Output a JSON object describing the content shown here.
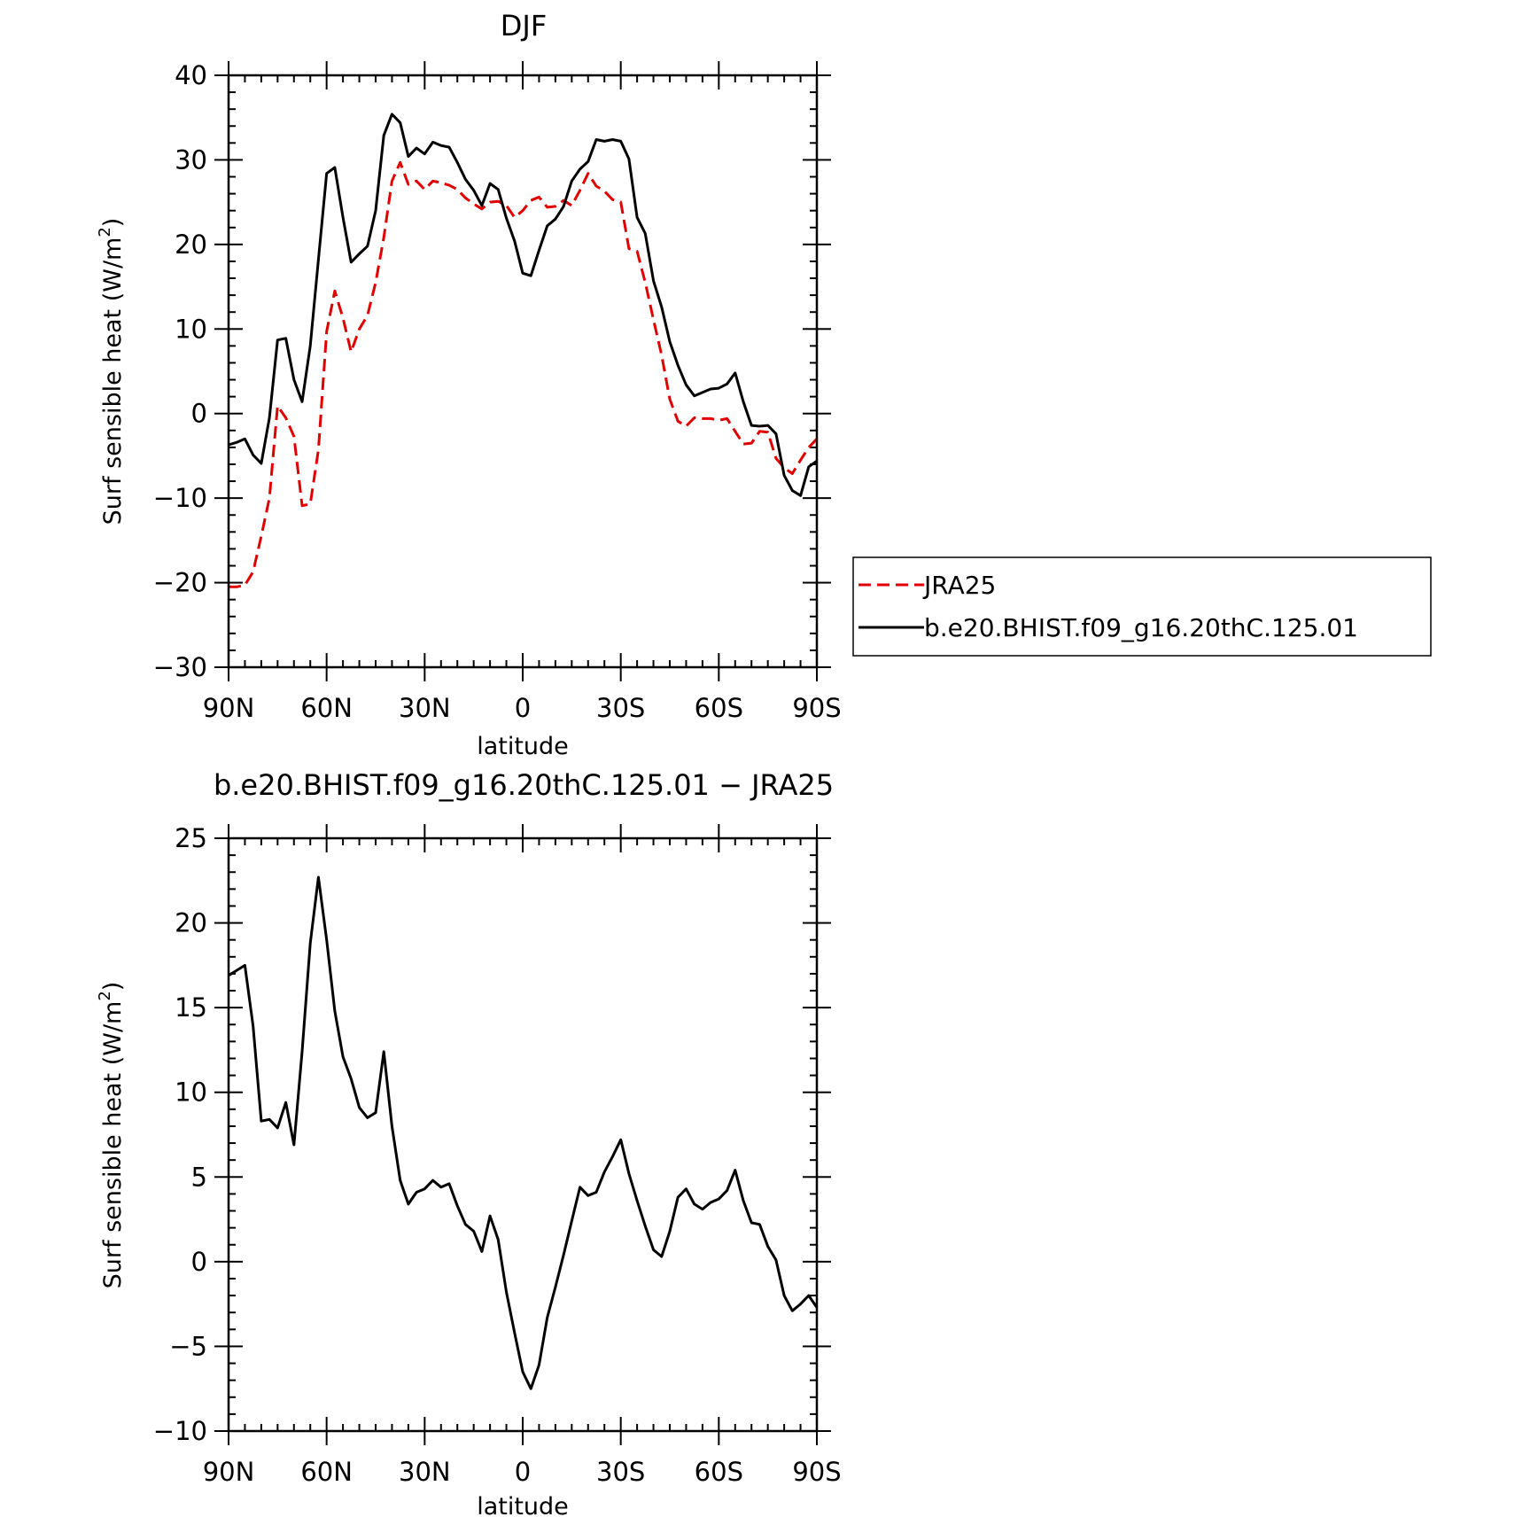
{
  "chart_data": [
    {
      "type": "line",
      "title": "DJF",
      "xlabel": "latitude",
      "ylabel": "Surf sensible heat (W/m",
      "ylabel_sup": "2",
      "ylabel_close": ")",
      "x_direction": "90N to 90S",
      "xlim": [
        90,
        -90
      ],
      "ylim": [
        -30,
        40
      ],
      "x_ticks": [
        90,
        60,
        30,
        0,
        -30,
        -60,
        -90
      ],
      "x_tick_labels": [
        "90N",
        "60N",
        "30N",
        "0",
        "30S",
        "60S",
        "90S"
      ],
      "y_ticks": [
        -30,
        -20,
        -10,
        0,
        10,
        20,
        30,
        40
      ],
      "y_tick_labels": [
        "−30",
        "−20",
        "−10",
        "0",
        "10",
        "20",
        "30",
        "40"
      ],
      "grid": false,
      "legend_position": "right, outside plot",
      "series": [
        {
          "name": "JRA25",
          "color": "#e00000",
          "dash": "dashed",
          "x": [
            90,
            87.5,
            85,
            82.5,
            80,
            77.5,
            75,
            72.5,
            70,
            67.5,
            65,
            62.5,
            60,
            57.5,
            55,
            52.5,
            50,
            47.5,
            45,
            42.5,
            40,
            37.5,
            35,
            32.5,
            30,
            27.5,
            25,
            22.5,
            20,
            17.5,
            15,
            12.5,
            10,
            7.5,
            5,
            2.5,
            0,
            -2.5,
            -5,
            -7.5,
            -10,
            -12.5,
            -15,
            -17.5,
            -20,
            -22.5,
            -25,
            -27.5,
            -30,
            -32.5,
            -35,
            -37.5,
            -40,
            -42.5,
            -45,
            -47.5,
            -50,
            -52.5,
            -55,
            -57.5,
            -60,
            -62.5,
            -65,
            -67.5,
            -70,
            -72.5,
            -75,
            -77.5,
            -80,
            -82.5,
            -85,
            -87.5,
            -90
          ],
          "y": [
            -20.5,
            -20.5,
            -20.3,
            -18.7,
            -14.5,
            -10,
            0.9,
            -0.5,
            -2.7,
            -10.9,
            -10.7,
            -4.3,
            9.7,
            14.5,
            11.3,
            7.3,
            10,
            11.6,
            15.5,
            20.8,
            27.5,
            29.7,
            27.1,
            27.5,
            26.5,
            27.5,
            27.3,
            27,
            26.5,
            25.5,
            24.8,
            24.2,
            25,
            25.1,
            24.6,
            23.2,
            24,
            25.2,
            25.6,
            24.4,
            24.5,
            25.2,
            24.6,
            26.4,
            28.4,
            26.9,
            26.3,
            25.3,
            25,
            19.5,
            19.2,
            15.5,
            11.1,
            6.9,
            1.7,
            -0.9,
            -1.5,
            -0.5,
            -0.6,
            -0.6,
            -0.8,
            -0.6,
            -2.1,
            -3.6,
            -3.5,
            -2.1,
            -2.2,
            -5.3,
            -6.4,
            -7.1,
            -5.5,
            -4,
            -3
          ]
        },
        {
          "name": "b.e20.BHIST.f09_g16.20thC.125.01",
          "color": "#000000",
          "dash": "solid",
          "x": [
            90,
            87.5,
            85,
            82.5,
            80,
            77.5,
            75,
            72.5,
            70,
            67.5,
            65,
            62.5,
            60,
            57.5,
            55,
            52.5,
            50,
            47.5,
            45,
            42.5,
            40,
            37.5,
            35,
            32.5,
            30,
            27.5,
            25,
            22.5,
            20,
            17.5,
            15,
            12.5,
            10,
            7.5,
            5,
            2.5,
            0,
            -2.5,
            -5,
            -7.5,
            -10,
            -12.5,
            -15,
            -17.5,
            -20,
            -22.5,
            -25,
            -27.5,
            -30,
            -32.5,
            -35,
            -37.5,
            -40,
            -42.5,
            -45,
            -47.5,
            -50,
            -52.5,
            -55,
            -57.5,
            -60,
            -62.5,
            -65,
            -67.5,
            -70,
            -72.5,
            -75,
            -77.5,
            -80,
            -82.5,
            -85,
            -87.5,
            -90
          ],
          "y": [
            -3.7,
            -3.4,
            -3,
            -4.9,
            -5.9,
            -0.5,
            8.7,
            8.9,
            4,
            1.4,
            8,
            18.2,
            28.4,
            29.1,
            23.2,
            17.9,
            18.9,
            19.8,
            24,
            32.9,
            35.4,
            34.4,
            30.4,
            31.4,
            30.7,
            32.1,
            31.7,
            31.5,
            29.7,
            27.7,
            26.4,
            24.6,
            27.2,
            26.5,
            23.1,
            20.4,
            16.6,
            16.3,
            19.3,
            22.2,
            23,
            24.5,
            27.5,
            28.9,
            29.8,
            32.4,
            32.2,
            32.4,
            32.2,
            30.1,
            23.2,
            21.3,
            15.7,
            12.6,
            8.5,
            5.7,
            3.4,
            2.1,
            2.5,
            2.9,
            3,
            3.5,
            4.8,
            1.4,
            -1.4,
            -1.5,
            -1.4,
            -2.4,
            -7.3,
            -9.1,
            -9.7,
            -6.3,
            -5.6
          ]
        }
      ]
    },
    {
      "type": "line",
      "title": "b.e20.BHIST.f09_g16.20thC.125.01 − JRA25",
      "xlabel": "latitude",
      "ylabel": "Surf sensible heat (W/m",
      "ylabel_sup": "2",
      "ylabel_close": ")",
      "x_direction": "90N to 90S",
      "xlim": [
        90,
        -90
      ],
      "ylim": [
        -10,
        25
      ],
      "x_ticks": [
        90,
        60,
        30,
        0,
        -30,
        -60,
        -90
      ],
      "x_tick_labels": [
        "90N",
        "60N",
        "30N",
        "0",
        "30S",
        "60S",
        "90S"
      ],
      "y_ticks": [
        -10,
        -5,
        0,
        5,
        10,
        15,
        20,
        25
      ],
      "y_tick_labels": [
        "−10",
        "−5",
        "0",
        "5",
        "10",
        "15",
        "20",
        "25"
      ],
      "grid": false,
      "series": [
        {
          "color": "#000000",
          "dash": "solid",
          "x": [
            90,
            87.5,
            85,
            82.5,
            80,
            77.5,
            75,
            72.5,
            70,
            67.5,
            65,
            62.5,
            60,
            57.5,
            55,
            52.5,
            50,
            47.5,
            45,
            42.5,
            40,
            37.5,
            35,
            32.5,
            30,
            27.5,
            25,
            22.5,
            20,
            17.5,
            15,
            12.5,
            10,
            7.5,
            5,
            2.5,
            0,
            -2.5,
            -5,
            -7.5,
            -10,
            -12.5,
            -15,
            -17.5,
            -20,
            -22.5,
            -25,
            -27.5,
            -30,
            -32.5,
            -35,
            -37.5,
            -40,
            -42.5,
            -45,
            -47.5,
            -50,
            -52.5,
            -55,
            -57.5,
            -60,
            -62.5,
            -65,
            -67.5,
            -70,
            -72.5,
            -75,
            -77.5,
            -80,
            -82.5,
            -85,
            -87.5,
            -90
          ],
          "y": [
            16.9,
            17.2,
            17.5,
            13.9,
            8.3,
            8.4,
            7.9,
            9.4,
            6.9,
            12.4,
            18.8,
            22.7,
            19,
            14.8,
            12.1,
            10.8,
            9.1,
            8.5,
            8.8,
            12.4,
            8,
            4.8,
            3.4,
            4.1,
            4.3,
            4.8,
            4.4,
            4.6,
            3.3,
            2.2,
            1.8,
            0.6,
            2.7,
            1.3,
            -1.8,
            -4.2,
            -6.5,
            -7.5,
            -6.1,
            -3.3,
            -1.5,
            0.4,
            2.4,
            4.4,
            3.9,
            4.1,
            5.3,
            6.2,
            7.2,
            5.2,
            3.6,
            2.1,
            0.7,
            0.3,
            1.8,
            3.8,
            4.3,
            3.4,
            3.1,
            3.5,
            3.7,
            4.2,
            5.4,
            3.6,
            2.3,
            2.2,
            0.9,
            0.1,
            -2,
            -2.9,
            -2.5,
            -2,
            -2.7
          ]
        }
      ]
    }
  ]
}
